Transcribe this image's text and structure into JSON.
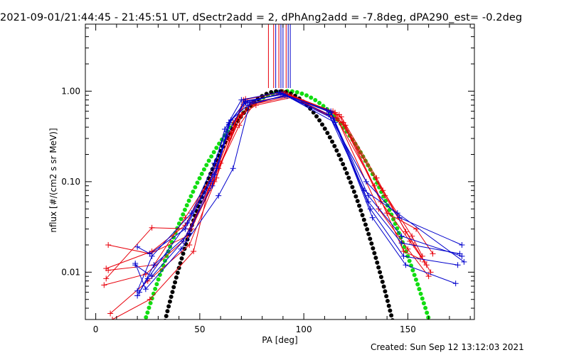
{
  "header": {
    "title": "2021-09-01/21:44:45 - 21:45:51 UT, dSectr2add = 2, dPhAng2add = -7.8deg, dPA290_est= -0.2deg"
  },
  "footer": {
    "created": "Created: Sun Sep 12 13:12:03 2021"
  },
  "chart_data": {
    "type": "line",
    "xlabel": "PA [deg]",
    "ylabel": "nflux [#/(cm2 s sr MeV)]",
    "xlim": [
      -5,
      182
    ],
    "ylim": [
      0.003,
      5.5
    ],
    "ylog": true,
    "xticks": [
      0,
      50,
      100,
      150
    ],
    "xtick_labels": [
      "0",
      "50",
      "100",
      "150"
    ],
    "yticks": [
      0.01,
      0.1,
      1.0
    ],
    "ytick_labels": [
      "0.01",
      "0.10",
      "1.00"
    ],
    "grid": false,
    "colors": {
      "red": "#e8000b",
      "blue": "#0000cc",
      "green": "#11dd11",
      "black": "#000000",
      "axis": "#000000"
    },
    "vertical_lines": {
      "red": [
        83,
        85.5,
        88,
        91.5
      ],
      "blue": [
        86.5,
        89,
        90,
        92.5,
        93.5
      ]
    },
    "series": [
      {
        "color": "red",
        "x": [
          5,
          27,
          43,
          56,
          66,
          73,
          91,
          117,
          137,
          151,
          158
        ],
        "y": [
          0.011,
          0.017,
          0.033,
          0.12,
          0.45,
          0.78,
          0.95,
          0.55,
          0.06,
          0.022,
          0.013
        ]
      },
      {
        "color": "red",
        "x": [
          6,
          26,
          44,
          57,
          67,
          74,
          92,
          116,
          136,
          150,
          160
        ],
        "y": [
          0.02,
          0.016,
          0.025,
          0.1,
          0.4,
          0.7,
          0.92,
          0.5,
          0.05,
          0.018,
          0.009
        ]
      },
      {
        "color": "red",
        "x": [
          4,
          24,
          42,
          55,
          65,
          72,
          90,
          115,
          138,
          152,
          157
        ],
        "y": [
          0.0072,
          0.0095,
          0.022,
          0.09,
          0.35,
          0.82,
          0.98,
          0.58,
          0.08,
          0.025,
          0.015
        ]
      },
      {
        "color": "red",
        "x": [
          7,
          25,
          45,
          58,
          68,
          75,
          93,
          118,
          135,
          149,
          159
        ],
        "y": [
          0.0035,
          0.008,
          0.02,
          0.11,
          0.5,
          0.75,
          0.9,
          0.52,
          0.11,
          0.028,
          0.012
        ]
      },
      {
        "color": "red",
        "x": [
          5,
          27,
          46,
          59,
          69,
          76,
          94,
          119,
          139,
          153,
          161
        ],
        "y": [
          0.0085,
          0.031,
          0.03,
          0.14,
          0.42,
          0.72,
          0.88,
          0.45,
          0.07,
          0.02,
          0.01
        ]
      },
      {
        "color": "red",
        "x": [
          8,
          26,
          47,
          54,
          64,
          71,
          89,
          114,
          134,
          148,
          156
        ],
        "y": [
          0.003,
          0.005,
          0.017,
          0.08,
          0.3,
          0.8,
          0.97,
          0.6,
          0.09,
          0.017,
          0.014
        ]
      },
      {
        "color": "red",
        "x": [
          6,
          28,
          43,
          60,
          70,
          77,
          95,
          120,
          140,
          154,
          162
        ],
        "y": [
          0.0105,
          0.012,
          0.04,
          0.16,
          0.55,
          0.7,
          0.86,
          0.42,
          0.045,
          0.03,
          0.016
        ]
      },
      {
        "color": "blue",
        "x": [
          20,
          26,
          43,
          57,
          64,
          72,
          90,
          113,
          131,
          147,
          175
        ],
        "y": [
          0.019,
          0.016,
          0.03,
          0.12,
          0.43,
          0.78,
          0.92,
          0.6,
          0.06,
          0.021,
          0.016
        ]
      },
      {
        "color": "blue",
        "x": [
          19,
          27,
          42,
          56,
          63,
          71,
          89,
          112,
          130,
          146,
          176
        ],
        "y": [
          0.012,
          0.009,
          0.022,
          0.09,
          0.32,
          0.72,
          0.95,
          0.55,
          0.1,
          0.04,
          0.02
        ]
      },
      {
        "color": "blue",
        "x": [
          20,
          25,
          44,
          58,
          65,
          73,
          91,
          114,
          132,
          148,
          174
        ],
        "y": [
          0.0055,
          0.0085,
          0.035,
          0.14,
          0.48,
          0.7,
          0.9,
          0.5,
          0.05,
          0.015,
          0.012
        ]
      },
      {
        "color": "blue",
        "x": [
          21,
          28,
          45,
          55,
          62,
          70,
          88,
          111,
          129,
          145,
          177
        ],
        "y": [
          0.006,
          0.012,
          0.027,
          0.1,
          0.38,
          0.8,
          0.97,
          0.62,
          0.08,
          0.045,
          0.013
        ]
      },
      {
        "color": "blue",
        "x": [
          19,
          24,
          41,
          59,
          66,
          74,
          92,
          115,
          133,
          149,
          173
        ],
        "y": [
          0.0125,
          0.0065,
          0.018,
          0.07,
          0.14,
          0.74,
          0.88,
          0.45,
          0.04,
          0.012,
          0.0075
        ]
      },
      {
        "color": "blue",
        "x": [
          20,
          27,
          46,
          57,
          64,
          72,
          90,
          113,
          131,
          147,
          176
        ],
        "y": [
          0.0062,
          0.015,
          0.045,
          0.16,
          0.45,
          0.76,
          0.93,
          0.58,
          0.07,
          0.025,
          0.015
        ]
      }
    ],
    "fits": [
      {
        "name": "",
        "color": "green",
        "style": "dotted",
        "peak": 1.0,
        "center": 92,
        "width": 20
      },
      {
        "name": "",
        "color": "black",
        "style": "dotted",
        "peak": 1.0,
        "center": 88,
        "width": 16
      }
    ]
  }
}
